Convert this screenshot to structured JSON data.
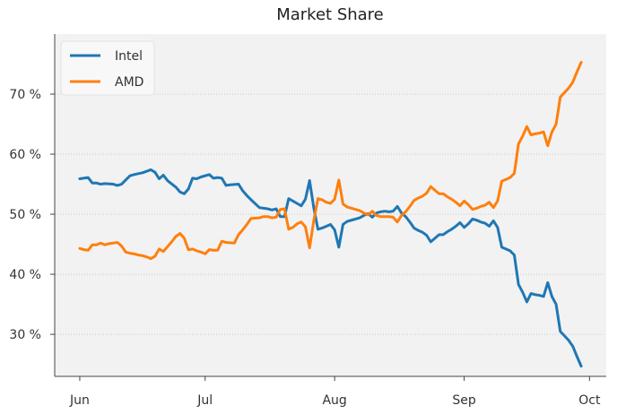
{
  "chart_data": {
    "type": "line",
    "title": "Market Share",
    "xlabel": "",
    "ylabel": "",
    "x_axis_type": "date",
    "xlim": [
      "2024-05-26",
      "2024-10-05"
    ],
    "ylim": [
      23,
      80
    ],
    "x_ticks": [
      {
        "date": "2024-06-01",
        "label": "Jun"
      },
      {
        "date": "2024-07-01",
        "label": "Jul"
      },
      {
        "date": "2024-08-01",
        "label": "Aug"
      },
      {
        "date": "2024-09-01",
        "label": "Sep"
      },
      {
        "date": "2024-10-01",
        "label": "Oct"
      }
    ],
    "y_ticks": [
      {
        "value": 30,
        "label": "30 %"
      },
      {
        "value": 40,
        "label": "40 %"
      },
      {
        "value": 50,
        "label": "50 %"
      },
      {
        "value": 60,
        "label": "60 %"
      },
      {
        "value": 70,
        "label": "70 %"
      }
    ],
    "grid": {
      "x": false,
      "y": true,
      "style": "dotted"
    },
    "legend_position": "top-left",
    "background": "#f2f2f2",
    "series": [
      {
        "name": "Intel",
        "color": "#1f77b4",
        "points": [
          [
            "2024-06-01",
            55.9
          ],
          [
            "2024-06-03",
            56.1
          ],
          [
            "2024-06-04",
            55.2
          ],
          [
            "2024-06-05",
            55.2
          ],
          [
            "2024-06-06",
            55.0
          ],
          [
            "2024-06-07",
            55.1
          ],
          [
            "2024-06-09",
            55.0
          ],
          [
            "2024-06-10",
            54.8
          ],
          [
            "2024-06-11",
            55.0
          ],
          [
            "2024-06-12",
            55.7
          ],
          [
            "2024-06-13",
            56.4
          ],
          [
            "2024-06-14",
            56.6
          ],
          [
            "2024-06-16",
            56.9
          ],
          [
            "2024-06-18",
            57.4
          ],
          [
            "2024-06-19",
            57.0
          ],
          [
            "2024-06-20",
            55.9
          ],
          [
            "2024-06-21",
            56.5
          ],
          [
            "2024-06-22",
            55.6
          ],
          [
            "2024-06-24",
            54.5
          ],
          [
            "2024-06-25",
            53.7
          ],
          [
            "2024-06-26",
            53.4
          ],
          [
            "2024-06-27",
            54.2
          ],
          [
            "2024-06-28",
            56.0
          ],
          [
            "2024-06-29",
            55.9
          ],
          [
            "2024-06-30",
            56.2
          ],
          [
            "2024-07-02",
            56.6
          ],
          [
            "2024-07-03",
            56.0
          ],
          [
            "2024-07-04",
            56.1
          ],
          [
            "2024-07-05",
            56.0
          ],
          [
            "2024-07-06",
            54.8
          ],
          [
            "2024-07-07",
            54.9
          ],
          [
            "2024-07-09",
            55.0
          ],
          [
            "2024-07-10",
            53.9
          ],
          [
            "2024-07-11",
            53.1
          ],
          [
            "2024-07-12",
            52.4
          ],
          [
            "2024-07-14",
            51.1
          ],
          [
            "2024-07-15",
            51.0
          ],
          [
            "2024-07-16",
            50.9
          ],
          [
            "2024-07-17",
            50.7
          ],
          [
            "2024-07-18",
            50.9
          ],
          [
            "2024-07-19",
            49.6
          ],
          [
            "2024-07-20",
            49.6
          ],
          [
            "2024-07-21",
            52.6
          ],
          [
            "2024-07-22",
            52.2
          ],
          [
            "2024-07-23",
            51.8
          ],
          [
            "2024-07-24",
            51.4
          ],
          [
            "2024-07-25",
            52.5
          ],
          [
            "2024-07-26",
            55.6
          ],
          [
            "2024-07-27",
            51.1
          ],
          [
            "2024-07-28",
            47.5
          ],
          [
            "2024-07-29",
            47.7
          ],
          [
            "2024-07-30",
            48.0
          ],
          [
            "2024-07-31",
            48.3
          ],
          [
            "2024-08-01",
            47.4
          ],
          [
            "2024-08-02",
            44.5
          ],
          [
            "2024-08-03",
            48.3
          ],
          [
            "2024-08-04",
            48.8
          ],
          [
            "2024-08-05",
            49.0
          ],
          [
            "2024-08-06",
            49.2
          ],
          [
            "2024-08-07",
            49.4
          ],
          [
            "2024-08-08",
            49.8
          ],
          [
            "2024-08-09",
            50.1
          ],
          [
            "2024-08-10",
            49.5
          ],
          [
            "2024-08-11",
            50.2
          ],
          [
            "2024-08-12",
            50.4
          ],
          [
            "2024-08-13",
            50.5
          ],
          [
            "2024-08-14",
            50.4
          ],
          [
            "2024-08-15",
            50.5
          ],
          [
            "2024-08-16",
            51.3
          ],
          [
            "2024-08-17",
            50.2
          ],
          [
            "2024-08-18",
            49.6
          ],
          [
            "2024-08-19",
            48.7
          ],
          [
            "2024-08-20",
            47.7
          ],
          [
            "2024-08-21",
            47.3
          ],
          [
            "2024-08-22",
            47.0
          ],
          [
            "2024-08-23",
            46.5
          ],
          [
            "2024-08-24",
            45.4
          ],
          [
            "2024-08-25",
            46.0
          ],
          [
            "2024-08-26",
            46.6
          ],
          [
            "2024-08-27",
            46.6
          ],
          [
            "2024-08-28",
            47.1
          ],
          [
            "2024-08-29",
            47.5
          ],
          [
            "2024-08-30",
            48.0
          ],
          [
            "2024-08-31",
            48.6
          ],
          [
            "2024-09-01",
            47.8
          ],
          [
            "2024-09-02",
            48.4
          ],
          [
            "2024-09-03",
            49.2
          ],
          [
            "2024-09-04",
            49.0
          ],
          [
            "2024-09-05",
            48.7
          ],
          [
            "2024-09-06",
            48.5
          ],
          [
            "2024-09-07",
            48.0
          ],
          [
            "2024-09-08",
            48.9
          ],
          [
            "2024-09-09",
            47.8
          ],
          [
            "2024-09-10",
            44.5
          ],
          [
            "2024-09-12",
            43.9
          ],
          [
            "2024-09-13",
            43.2
          ],
          [
            "2024-09-14",
            38.3
          ],
          [
            "2024-09-15",
            37.0
          ],
          [
            "2024-09-16",
            35.4
          ],
          [
            "2024-09-17",
            36.8
          ],
          [
            "2024-09-18",
            36.6
          ],
          [
            "2024-09-19",
            36.5
          ],
          [
            "2024-09-20",
            36.3
          ],
          [
            "2024-09-21",
            38.6
          ],
          [
            "2024-09-22",
            36.3
          ],
          [
            "2024-09-23",
            35.0
          ],
          [
            "2024-09-24",
            30.5
          ],
          [
            "2024-09-26",
            29.0
          ],
          [
            "2024-09-27",
            28.0
          ],
          [
            "2024-09-28",
            26.3
          ],
          [
            "2024-09-29",
            24.7
          ]
        ]
      },
      {
        "name": "AMD",
        "color": "#ff7f0e",
        "points": [
          [
            "2024-06-01",
            44.3
          ],
          [
            "2024-06-02",
            44.1
          ],
          [
            "2024-06-03",
            44.0
          ],
          [
            "2024-06-04",
            44.9
          ],
          [
            "2024-06-05",
            44.9
          ],
          [
            "2024-06-06",
            45.2
          ],
          [
            "2024-06-07",
            44.9
          ],
          [
            "2024-06-08",
            45.1
          ],
          [
            "2024-06-09",
            45.2
          ],
          [
            "2024-06-10",
            45.3
          ],
          [
            "2024-06-11",
            44.7
          ],
          [
            "2024-06-12",
            43.7
          ],
          [
            "2024-06-13",
            43.5
          ],
          [
            "2024-06-14",
            43.4
          ],
          [
            "2024-06-15",
            43.2
          ],
          [
            "2024-06-16",
            43.1
          ],
          [
            "2024-06-17",
            42.9
          ],
          [
            "2024-06-18",
            42.6
          ],
          [
            "2024-06-19",
            43.0
          ],
          [
            "2024-06-20",
            44.2
          ],
          [
            "2024-06-21",
            43.8
          ],
          [
            "2024-06-22",
            44.6
          ],
          [
            "2024-06-23",
            45.4
          ],
          [
            "2024-06-24",
            46.3
          ],
          [
            "2024-06-25",
            46.8
          ],
          [
            "2024-06-26",
            46.0
          ],
          [
            "2024-06-27",
            44.1
          ],
          [
            "2024-06-28",
            44.2
          ],
          [
            "2024-06-29",
            43.9
          ],
          [
            "2024-06-30",
            43.7
          ],
          [
            "2024-07-01",
            43.4
          ],
          [
            "2024-07-02",
            44.1
          ],
          [
            "2024-07-03",
            44.0
          ],
          [
            "2024-07-04",
            44.0
          ],
          [
            "2024-07-05",
            45.5
          ],
          [
            "2024-07-06",
            45.3
          ],
          [
            "2024-07-08",
            45.2
          ],
          [
            "2024-07-09",
            46.6
          ],
          [
            "2024-07-10",
            47.4
          ],
          [
            "2024-07-11",
            48.3
          ],
          [
            "2024-07-12",
            49.3
          ],
          [
            "2024-07-14",
            49.4
          ],
          [
            "2024-07-15",
            49.6
          ],
          [
            "2024-07-16",
            49.6
          ],
          [
            "2024-07-17",
            49.4
          ],
          [
            "2024-07-18",
            49.5
          ],
          [
            "2024-07-19",
            50.8
          ],
          [
            "2024-07-20",
            50.9
          ],
          [
            "2024-07-21",
            47.5
          ],
          [
            "2024-07-22",
            47.8
          ],
          [
            "2024-07-23",
            48.4
          ],
          [
            "2024-07-24",
            48.7
          ],
          [
            "2024-07-25",
            47.9
          ],
          [
            "2024-07-26",
            44.4
          ],
          [
            "2024-07-27",
            48.9
          ],
          [
            "2024-07-28",
            52.6
          ],
          [
            "2024-07-29",
            52.4
          ],
          [
            "2024-07-30",
            52.0
          ],
          [
            "2024-07-31",
            51.8
          ],
          [
            "2024-08-01",
            52.5
          ],
          [
            "2024-08-02",
            55.7
          ],
          [
            "2024-08-03",
            51.7
          ],
          [
            "2024-08-04",
            51.2
          ],
          [
            "2024-08-05",
            51.0
          ],
          [
            "2024-08-06",
            50.8
          ],
          [
            "2024-08-07",
            50.6
          ],
          [
            "2024-08-08",
            50.2
          ],
          [
            "2024-08-09",
            49.9
          ],
          [
            "2024-08-10",
            50.5
          ],
          [
            "2024-08-11",
            49.8
          ],
          [
            "2024-08-12",
            49.6
          ],
          [
            "2024-08-13",
            49.6
          ],
          [
            "2024-08-14",
            49.6
          ],
          [
            "2024-08-15",
            49.5
          ],
          [
            "2024-08-16",
            48.7
          ],
          [
            "2024-08-17",
            49.8
          ],
          [
            "2024-08-18",
            50.4
          ],
          [
            "2024-08-19",
            51.3
          ],
          [
            "2024-08-20",
            52.3
          ],
          [
            "2024-08-21",
            52.7
          ],
          [
            "2024-08-22",
            53.0
          ],
          [
            "2024-08-23",
            53.5
          ],
          [
            "2024-08-24",
            54.6
          ],
          [
            "2024-08-25",
            54.0
          ],
          [
            "2024-08-26",
            53.4
          ],
          [
            "2024-08-27",
            53.4
          ],
          [
            "2024-08-28",
            52.9
          ],
          [
            "2024-08-29",
            52.5
          ],
          [
            "2024-08-30",
            52.0
          ],
          [
            "2024-08-31",
            51.4
          ],
          [
            "2024-09-01",
            52.2
          ],
          [
            "2024-09-02",
            51.6
          ],
          [
            "2024-09-03",
            50.8
          ],
          [
            "2024-09-04",
            51.0
          ],
          [
            "2024-09-05",
            51.3
          ],
          [
            "2024-09-06",
            51.5
          ],
          [
            "2024-09-07",
            52.0
          ],
          [
            "2024-09-08",
            51.1
          ],
          [
            "2024-09-09",
            52.2
          ],
          [
            "2024-09-10",
            55.5
          ],
          [
            "2024-09-12",
            56.1
          ],
          [
            "2024-09-13",
            56.8
          ],
          [
            "2024-09-14",
            61.7
          ],
          [
            "2024-09-15",
            63.0
          ],
          [
            "2024-09-16",
            64.6
          ],
          [
            "2024-09-17",
            63.2
          ],
          [
            "2024-09-18",
            63.4
          ],
          [
            "2024-09-19",
            63.5
          ],
          [
            "2024-09-20",
            63.7
          ],
          [
            "2024-09-21",
            61.4
          ],
          [
            "2024-09-22",
            63.7
          ],
          [
            "2024-09-23",
            65.0
          ],
          [
            "2024-09-24",
            69.5
          ],
          [
            "2024-09-26",
            71.0
          ],
          [
            "2024-09-27",
            72.0
          ],
          [
            "2024-09-28",
            73.7
          ],
          [
            "2024-09-29",
            75.3
          ]
        ]
      }
    ]
  }
}
